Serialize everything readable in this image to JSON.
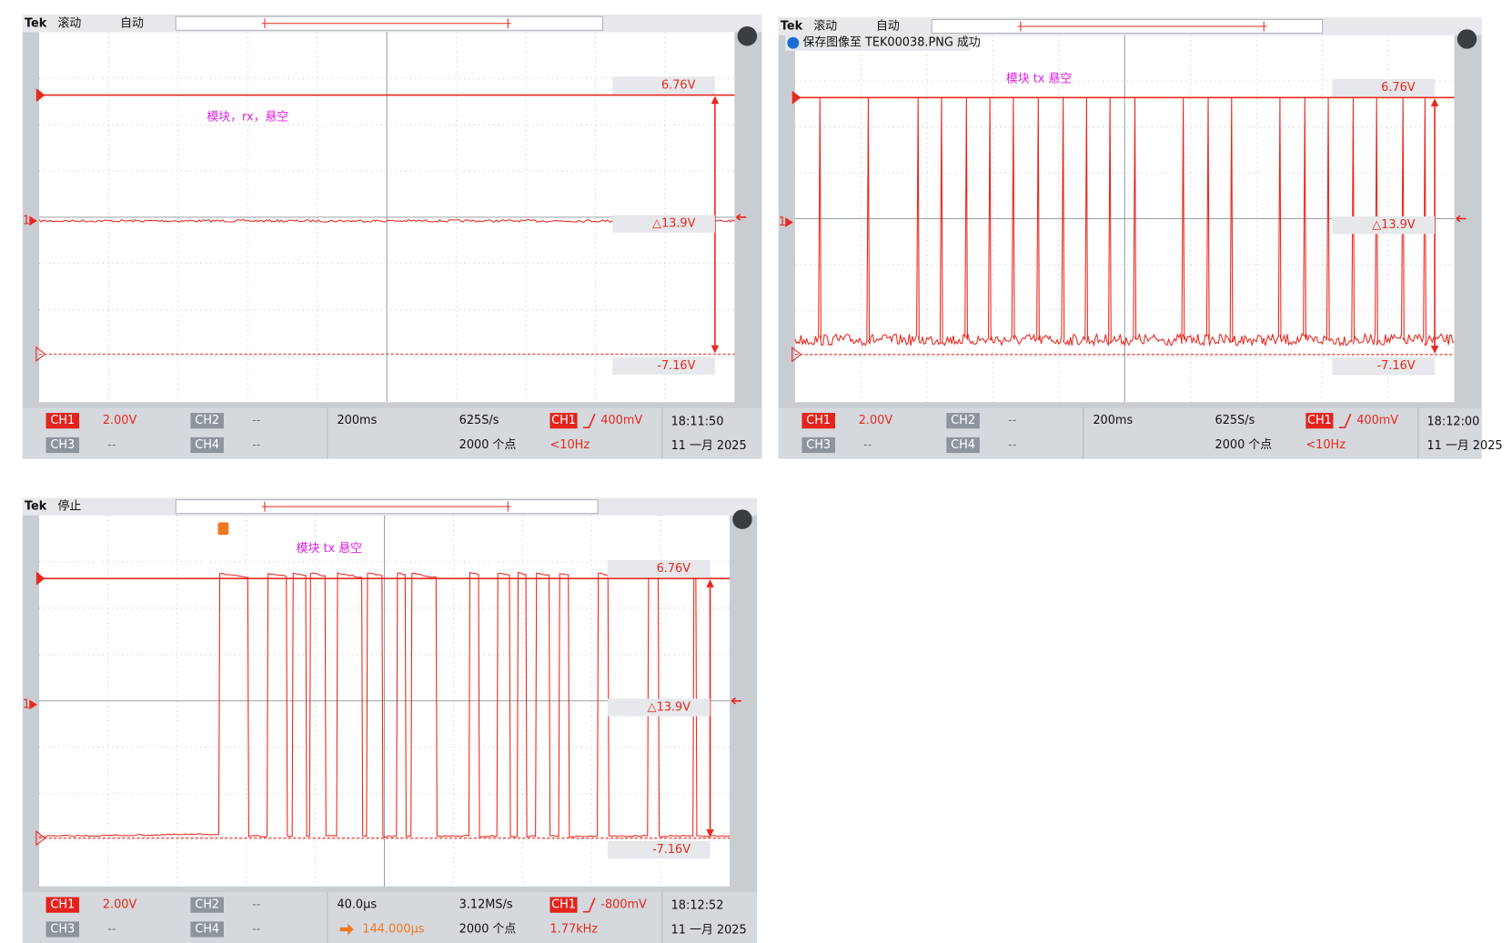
{
  "screens": [
    {
      "status": [
        "Tek",
        "滚动",
        "自动"
      ],
      "annotation": "模块，rx，悬空",
      "cursors": {
        "top": "6.76V",
        "delta": "△13.9V",
        "bottom": "-7.16V"
      },
      "channel_marker": "1",
      "channels": [
        {
          "name": "CH1",
          "scale": "2.00V"
        },
        {
          "name": "CH2",
          "scale": "--"
        },
        {
          "name": "CH3",
          "scale": "--"
        },
        {
          "name": "CH4",
          "scale": "--"
        }
      ],
      "horizontal": {
        "scale": "200ms",
        "sample_rate": "625S/s",
        "record": "2000 个点"
      },
      "trigger": {
        "source": "CH1",
        "level": "400mV",
        "frequency": "<10Hz"
      },
      "time": "18:11:50",
      "date": "11 一月 2025"
    },
    {
      "status": [
        "Tek",
        "滚动",
        "自动"
      ],
      "notice": "保存图像至 TEK00038.PNG 成功",
      "annotation": "模块  tx  悬空",
      "cursors": {
        "top": "6.76V",
        "delta": "△13.9V",
        "bottom": "-7.16V"
      },
      "channel_marker": "1",
      "channels": [
        {
          "name": "CH1",
          "scale": "2.00V"
        },
        {
          "name": "CH2",
          "scale": "--"
        },
        {
          "name": "CH3",
          "scale": "--"
        },
        {
          "name": "CH4",
          "scale": "--"
        }
      ],
      "horizontal": {
        "scale": "200ms",
        "sample_rate": "625S/s",
        "record": "2000 个点"
      },
      "trigger": {
        "source": "CH1",
        "level": "400mV",
        "frequency": "<10Hz"
      },
      "time": "18:12:00",
      "date": "11 一月 2025"
    },
    {
      "status": [
        "Tek",
        "停止"
      ],
      "annotation": "模块  tx 悬空",
      "cursors": {
        "top": "6.76V",
        "delta": "△13.9V",
        "bottom": "-7.16V"
      },
      "channel_marker": "1",
      "channels": [
        {
          "name": "CH1",
          "scale": "2.00V"
        },
        {
          "name": "CH2",
          "scale": "--"
        },
        {
          "name": "CH3",
          "scale": "--"
        },
        {
          "name": "CH4",
          "scale": "--"
        }
      ],
      "horizontal": {
        "scale": "40.0μs",
        "position": "144.000μs",
        "sample_rate": "3.12MS/s",
        "record": "2000 个点"
      },
      "trigger": {
        "source": "CH1",
        "level": "-800mV",
        "frequency": "1.77kHz"
      },
      "time": "18:12:52",
      "date": "11 一月 2025"
    }
  ]
}
